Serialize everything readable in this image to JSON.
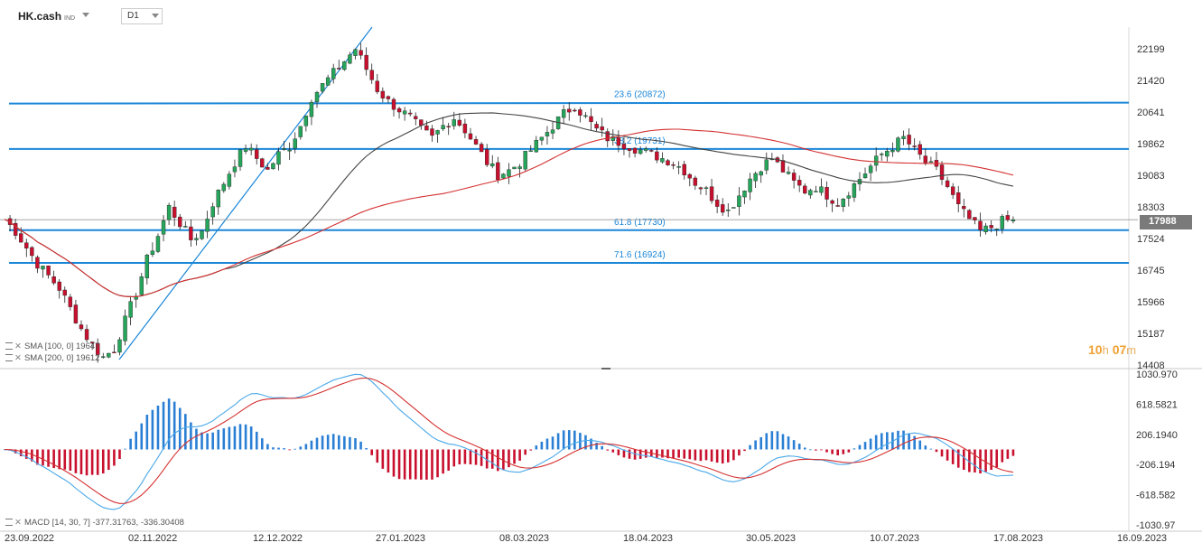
{
  "toolbar": {
    "symbol": "HK.cash",
    "symbol_sub": "IND",
    "timeframe": "D1"
  },
  "indicators": {
    "sma100": {
      "label": "SMA [100, 0]",
      "value": "19647"
    },
    "sma200": {
      "label": "SMA [200, 0]",
      "value": "19612"
    },
    "macd": {
      "label": "MACD [14, 30, 7]",
      "v1": "-377.31763,",
      "v2": "-336.30408"
    }
  },
  "countdown": {
    "h": "10",
    "h_unit": "h",
    "m": "07",
    "m_unit": "m"
  },
  "current_price": "17988",
  "fib_levels": [
    {
      "label": "23.6 (20872)",
      "value": 20872
    },
    {
      "label": "38.2 (19731)",
      "value": 19731
    },
    {
      "label": "61.8 (17730)",
      "value": 17730
    },
    {
      "label": "71.6 (16924)",
      "value": 16924
    }
  ],
  "colors": {
    "up": "#26a65b",
    "down": "#c8102e",
    "fib": "#1a86d8",
    "sma100": "#444444",
    "sma200": "#d43030",
    "macd_pos": "#2a7fd4",
    "macd_neg": "#c8102e",
    "macd_line": "#4aa8e8",
    "signal_line": "#d43030"
  },
  "chart_data": {
    "type": "candlestick",
    "price_axis_ticks": [
      "22199",
      "21420",
      "20641",
      "19862",
      "19083",
      "18303",
      "17524",
      "16745",
      "15966",
      "15187",
      "14408"
    ],
    "price_axis_values": [
      22199,
      21420,
      20641,
      19862,
      19083,
      18303,
      17524,
      16745,
      15966,
      15187,
      14408
    ],
    "macd_axis_ticks": [
      "1030.970",
      "618.5821",
      "206.1940",
      "-206.194",
      "-618.582",
      "-1030.97"
    ],
    "macd_axis_values": [
      1030.97,
      618.5821,
      206.194,
      -206.194,
      -618.582,
      -1030.97
    ],
    "date_ticks": [
      "23.09.2022",
      "02.11.2022",
      "12.12.2022",
      "27.01.2023",
      "08.03.2023",
      "18.04.2023",
      "30.05.2023",
      "10.07.2023",
      "17.08.2023",
      "16.09.2023"
    ],
    "price_range": [
      14408,
      22600
    ],
    "macd_range": [
      -1030.97,
      1030.97
    ],
    "close_path": [
      18000,
      17700,
      17300,
      16900,
      16600,
      16300,
      15800,
      15300,
      14900,
      14600,
      14800,
      15500,
      16200,
      17000,
      17600,
      18300,
      17900,
      17500,
      17700,
      18400,
      18900,
      19400,
      19800,
      19500,
      19200,
      19600,
      19800,
      20300,
      21000,
      21300,
      21600,
      21900,
      22200,
      21700,
      21200,
      20900,
      20700,
      20500,
      20200,
      20000,
      20300,
      20500,
      20200,
      19800,
      19400,
      19100,
      19200,
      19400,
      19700,
      20000,
      20300,
      20600,
      20800,
      20500,
      20200,
      20000,
      19900,
      19800,
      19700,
      19600,
      19500,
      19400,
      19200,
      18900,
      18700,
      18400,
      18200,
      18600,
      19000,
      19300,
      19500,
      19200,
      18900,
      18700,
      18800,
      18600,
      18400,
      18700,
      19000,
      19300,
      19600,
      19800,
      20000,
      19700,
      19400,
      19200,
      18800,
      18300,
      18000,
      17700,
      17800,
      17950,
      17988
    ]
  }
}
